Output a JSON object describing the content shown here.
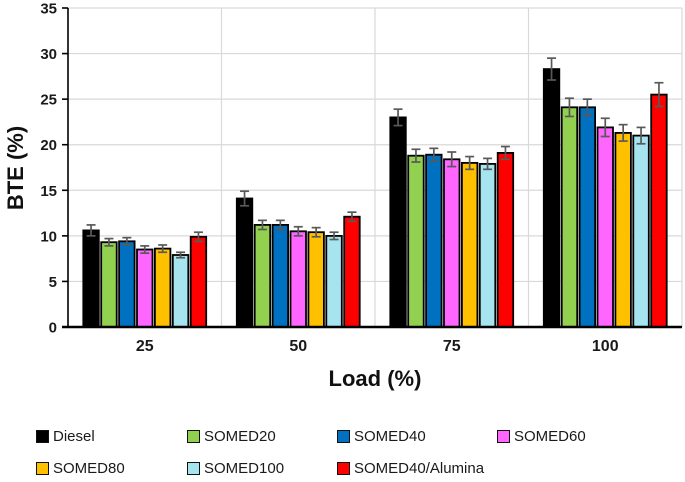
{
  "chart_data": {
    "type": "bar",
    "title": "",
    "xlabel": "Load (%)",
    "ylabel": "BTE (%)",
    "ylim": [
      0,
      35
    ],
    "yticks": [
      0,
      5,
      10,
      15,
      20,
      25,
      30,
      35
    ],
    "categories": [
      "25",
      "50",
      "75",
      "100"
    ],
    "grid": "horizontal gridlines every 5 units, vertical gridlines at category boundaries",
    "legend_position": "bottom",
    "error_bars": true,
    "series": [
      {
        "name": "Diesel",
        "color": "#000000",
        "values": [
          10.6,
          14.1,
          23.0,
          28.3
        ],
        "errors": [
          0.6,
          0.8,
          0.9,
          1.2
        ]
      },
      {
        "name": "SOMED20",
        "color": "#92D050",
        "values": [
          9.3,
          11.2,
          18.8,
          24.1
        ],
        "errors": [
          0.4,
          0.5,
          0.7,
          1.0
        ]
      },
      {
        "name": "SOMED40",
        "color": "#0070C0",
        "values": [
          9.4,
          11.2,
          18.9,
          24.1
        ],
        "errors": [
          0.4,
          0.5,
          0.7,
          0.9
        ]
      },
      {
        "name": "SOMED60",
        "color": "#FF66FF",
        "values": [
          8.5,
          10.5,
          18.4,
          21.9
        ],
        "errors": [
          0.4,
          0.5,
          0.8,
          1.0
        ]
      },
      {
        "name": "SOMED80",
        "color": "#FFC000",
        "values": [
          8.6,
          10.4,
          18.0,
          21.3
        ],
        "errors": [
          0.4,
          0.5,
          0.7,
          0.9
        ]
      },
      {
        "name": "SOMED100",
        "color": "#A6E4F0",
        "values": [
          7.9,
          10.0,
          17.9,
          21.0
        ],
        "errors": [
          0.3,
          0.4,
          0.6,
          0.9
        ]
      },
      {
        "name": "SOMED40/Alumina",
        "color": "#FF0000",
        "values": [
          9.9,
          12.1,
          19.1,
          25.5
        ],
        "errors": [
          0.5,
          0.5,
          0.7,
          1.3
        ]
      }
    ],
    "colors": {
      "grid": "#D9D9D9",
      "axis": "#000000",
      "error_bar": "#595959",
      "background": "#FFFFFF"
    }
  }
}
